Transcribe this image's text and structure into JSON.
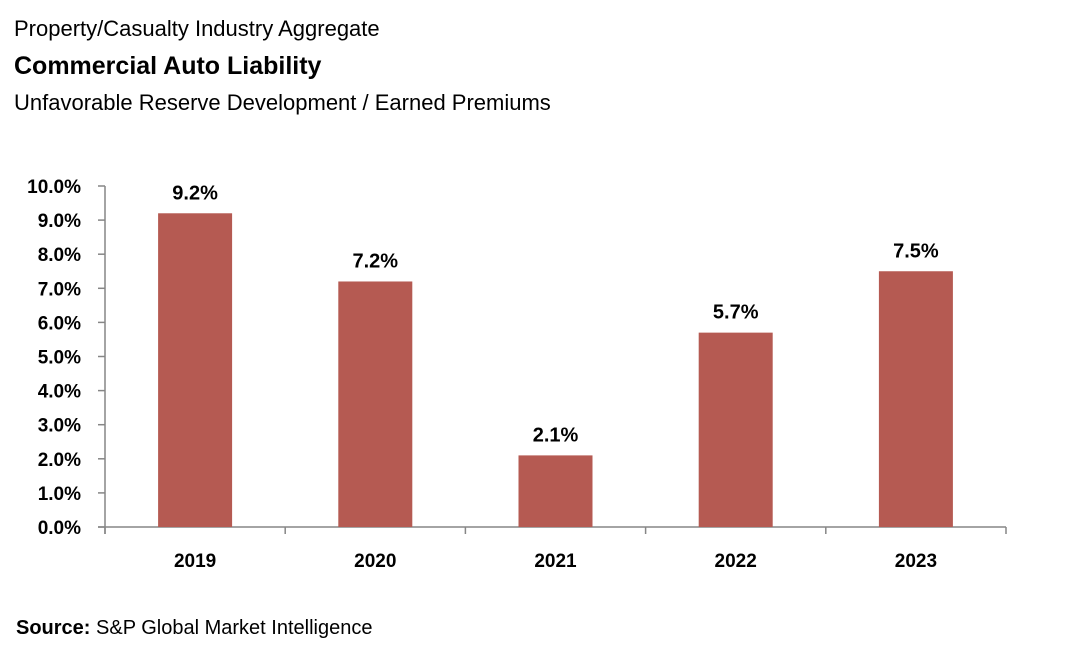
{
  "header": {
    "pretitle": "Property/Casualty Industry Aggregate",
    "title": "Commercial Auto Liability",
    "subtitle": "Unfavorable Reserve Development / Earned Premiums"
  },
  "footer": {
    "source_label": "Source:",
    "source_text": " S&P Global Market Intelligence"
  },
  "colors": {
    "bar": "#B55A52",
    "axis": "#868686"
  },
  "chart_data": {
    "type": "bar",
    "title": "Commercial Auto Liability",
    "subtitle": "Unfavorable Reserve Development / Earned Premiums",
    "xlabel": "",
    "ylabel": "",
    "categories": [
      "2019",
      "2020",
      "2021",
      "2022",
      "2023"
    ],
    "values": [
      9.2,
      7.2,
      2.1,
      5.7,
      7.5
    ],
    "data_labels": [
      "9.2%",
      "7.2%",
      "2.1%",
      "5.7%",
      "7.5%"
    ],
    "ylim": [
      0,
      10
    ],
    "yticks": [
      0,
      1,
      2,
      3,
      4,
      5,
      6,
      7,
      8,
      9,
      10
    ],
    "ytick_labels": [
      "0.0%",
      "1.0%",
      "2.0%",
      "3.0%",
      "4.0%",
      "5.0%",
      "6.0%",
      "7.0%",
      "8.0%",
      "9.0%",
      "10.0%"
    ],
    "grid": false,
    "legend": "none"
  }
}
